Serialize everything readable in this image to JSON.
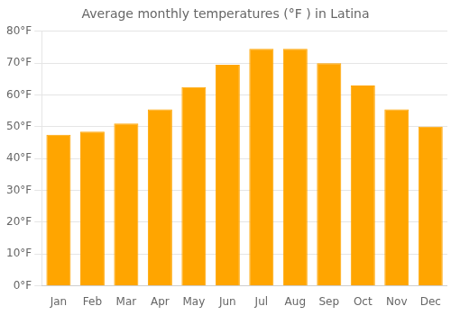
{
  "chart_data": {
    "type": "bar",
    "title": "Average monthly temperatures (°F ) in Latina",
    "categories": [
      "Jan",
      "Feb",
      "Mar",
      "Apr",
      "May",
      "Jun",
      "Jul",
      "Aug",
      "Sep",
      "Oct",
      "Nov",
      "Dec"
    ],
    "values": [
      47.5,
      48.5,
      51.0,
      55.5,
      62.5,
      69.5,
      74.5,
      74.5,
      70.0,
      63.0,
      55.5,
      50.0
    ],
    "color": "#FFA500",
    "ylim": [
      0,
      80
    ],
    "yticks": [
      {
        "value": 0,
        "label": "0°F"
      },
      {
        "value": 10,
        "label": "10°F"
      },
      {
        "value": 20,
        "label": "20°F"
      },
      {
        "value": 30,
        "label": "30°F"
      },
      {
        "value": 40,
        "label": "40°F"
      },
      {
        "value": 50,
        "label": "50°F"
      },
      {
        "value": 60,
        "label": "60°F"
      },
      {
        "value": 70,
        "label": "70°F"
      },
      {
        "value": 80,
        "label": "80°F"
      }
    ],
    "grid": true
  }
}
